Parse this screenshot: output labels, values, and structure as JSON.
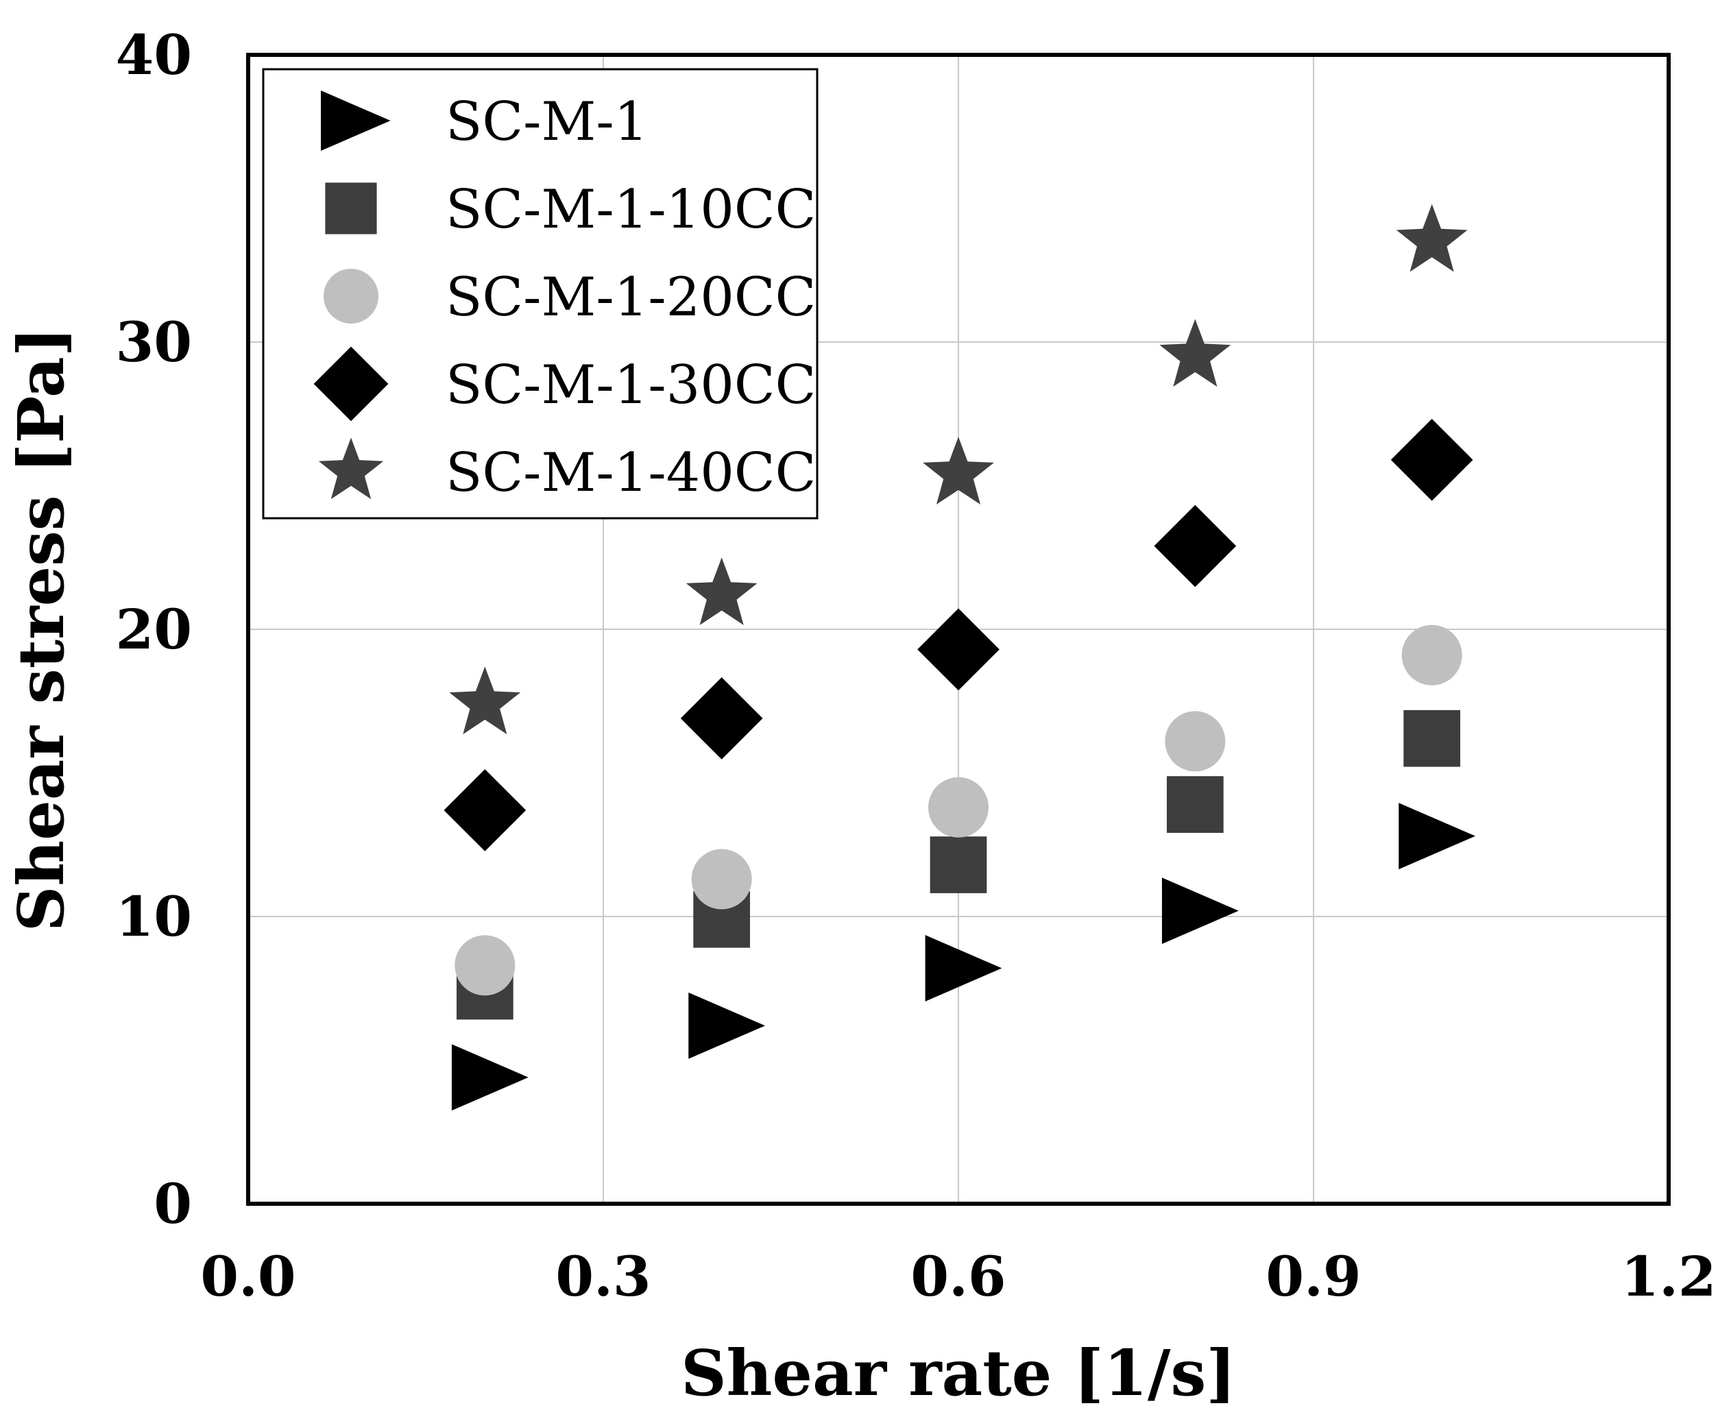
{
  "chart_data": {
    "type": "scatter",
    "title": "",
    "xlabel": "Shear rate [1/s]",
    "ylabel": "Shear stress [Pa]",
    "xlim": [
      0.0,
      1.2
    ],
    "ylim": [
      0,
      40
    ],
    "xticks": [
      0.0,
      0.3,
      0.6,
      0.9,
      1.2
    ],
    "xtick_labels": [
      "0.0",
      "0.3",
      "0.6",
      "0.9",
      "1.2"
    ],
    "yticks": [
      0,
      10,
      20,
      30,
      40
    ],
    "ytick_labels": [
      "0",
      "10",
      "20",
      "30",
      "40"
    ],
    "grid": true,
    "legend_position": "top-left",
    "x": [
      0.2,
      0.4,
      0.6,
      0.8,
      1.0
    ],
    "series": [
      {
        "name": "SC-M-1",
        "marker": "triangle-right",
        "color": "#000000",
        "values": [
          4.4,
          6.2,
          8.2,
          10.2,
          12.8
        ]
      },
      {
        "name": "SC-M-1-10CC",
        "marker": "square",
        "color": "#3d3d3d",
        "values": [
          7.4,
          9.9,
          11.8,
          13.9,
          16.2
        ]
      },
      {
        "name": "SC-M-1-20CC",
        "marker": "circle",
        "color": "#bfbfbf",
        "values": [
          8.3,
          11.3,
          13.8,
          16.1,
          19.1
        ]
      },
      {
        "name": "SC-M-1-30CC",
        "marker": "diamond",
        "color": "#000000",
        "values": [
          13.7,
          16.9,
          19.3,
          22.9,
          25.9
        ]
      },
      {
        "name": "SC-M-1-40CC",
        "marker": "star",
        "color": "#404040",
        "values": [
          17.4,
          21.2,
          25.4,
          29.5,
          33.5
        ]
      }
    ]
  }
}
